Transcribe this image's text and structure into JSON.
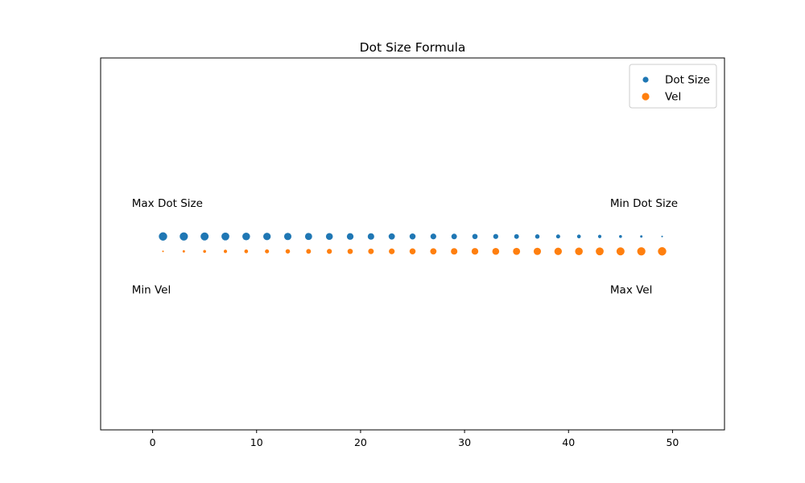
{
  "chart_data": {
    "type": "scatter",
    "title": "Dot Size Formula",
    "xlabel": "",
    "ylabel": "",
    "xlim": [
      -5,
      55
    ],
    "ylim": [
      -1.5,
      1.5
    ],
    "x_ticks": [
      0,
      10,
      20,
      30,
      40,
      50
    ],
    "x_tick_labels": [
      "0",
      "10",
      "20",
      "30",
      "40",
      "50"
    ],
    "y_ticks_shown": false,
    "grid": false,
    "legend_position": "top-right",
    "series": [
      {
        "name": "Dot Size",
        "color": "#1f77b4",
        "x": [
          1,
          3,
          5,
          7,
          9,
          11,
          13,
          15,
          17,
          19,
          21,
          23,
          25,
          27,
          29,
          31,
          33,
          35,
          37,
          39,
          41,
          43,
          45,
          47,
          49
        ],
        "y": [
          0.06,
          0.06,
          0.06,
          0.06,
          0.06,
          0.06,
          0.06,
          0.06,
          0.06,
          0.06,
          0.06,
          0.06,
          0.06,
          0.06,
          0.06,
          0.06,
          0.06,
          0.06,
          0.06,
          0.06,
          0.06,
          0.06,
          0.06,
          0.06,
          0.06
        ],
        "sizes": [
          50,
          48,
          46,
          44,
          42,
          40,
          38,
          36,
          34,
          32,
          30,
          28,
          26,
          24,
          22,
          20,
          18,
          16,
          14,
          12,
          10,
          8,
          6,
          4,
          2
        ]
      },
      {
        "name": "Vel",
        "color": "#ff7f0e",
        "x": [
          1,
          3,
          5,
          7,
          9,
          11,
          13,
          15,
          17,
          19,
          21,
          23,
          25,
          27,
          29,
          31,
          33,
          35,
          37,
          39,
          41,
          43,
          45,
          47,
          49
        ],
        "y": [
          -0.06,
          -0.06,
          -0.06,
          -0.06,
          -0.06,
          -0.06,
          -0.06,
          -0.06,
          -0.06,
          -0.06,
          -0.06,
          -0.06,
          -0.06,
          -0.06,
          -0.06,
          -0.06,
          -0.06,
          -0.06,
          -0.06,
          -0.06,
          -0.06,
          -0.06,
          -0.06,
          -0.06,
          -0.06
        ],
        "sizes": [
          2,
          4,
          6,
          8,
          10,
          12,
          14,
          16,
          18,
          20,
          22,
          24,
          26,
          28,
          30,
          32,
          34,
          36,
          38,
          40,
          42,
          44,
          46,
          48,
          50
        ]
      }
    ],
    "annotations": [
      {
        "text": "Max Dot Size",
        "x": -2,
        "y": 0.3
      },
      {
        "text": "Min Dot Size",
        "x": 44,
        "y": 0.3
      },
      {
        "text": "Min Vel",
        "x": -2,
        "y": -0.4
      },
      {
        "text": "Max Vel",
        "x": 44,
        "y": -0.4
      }
    ]
  }
}
